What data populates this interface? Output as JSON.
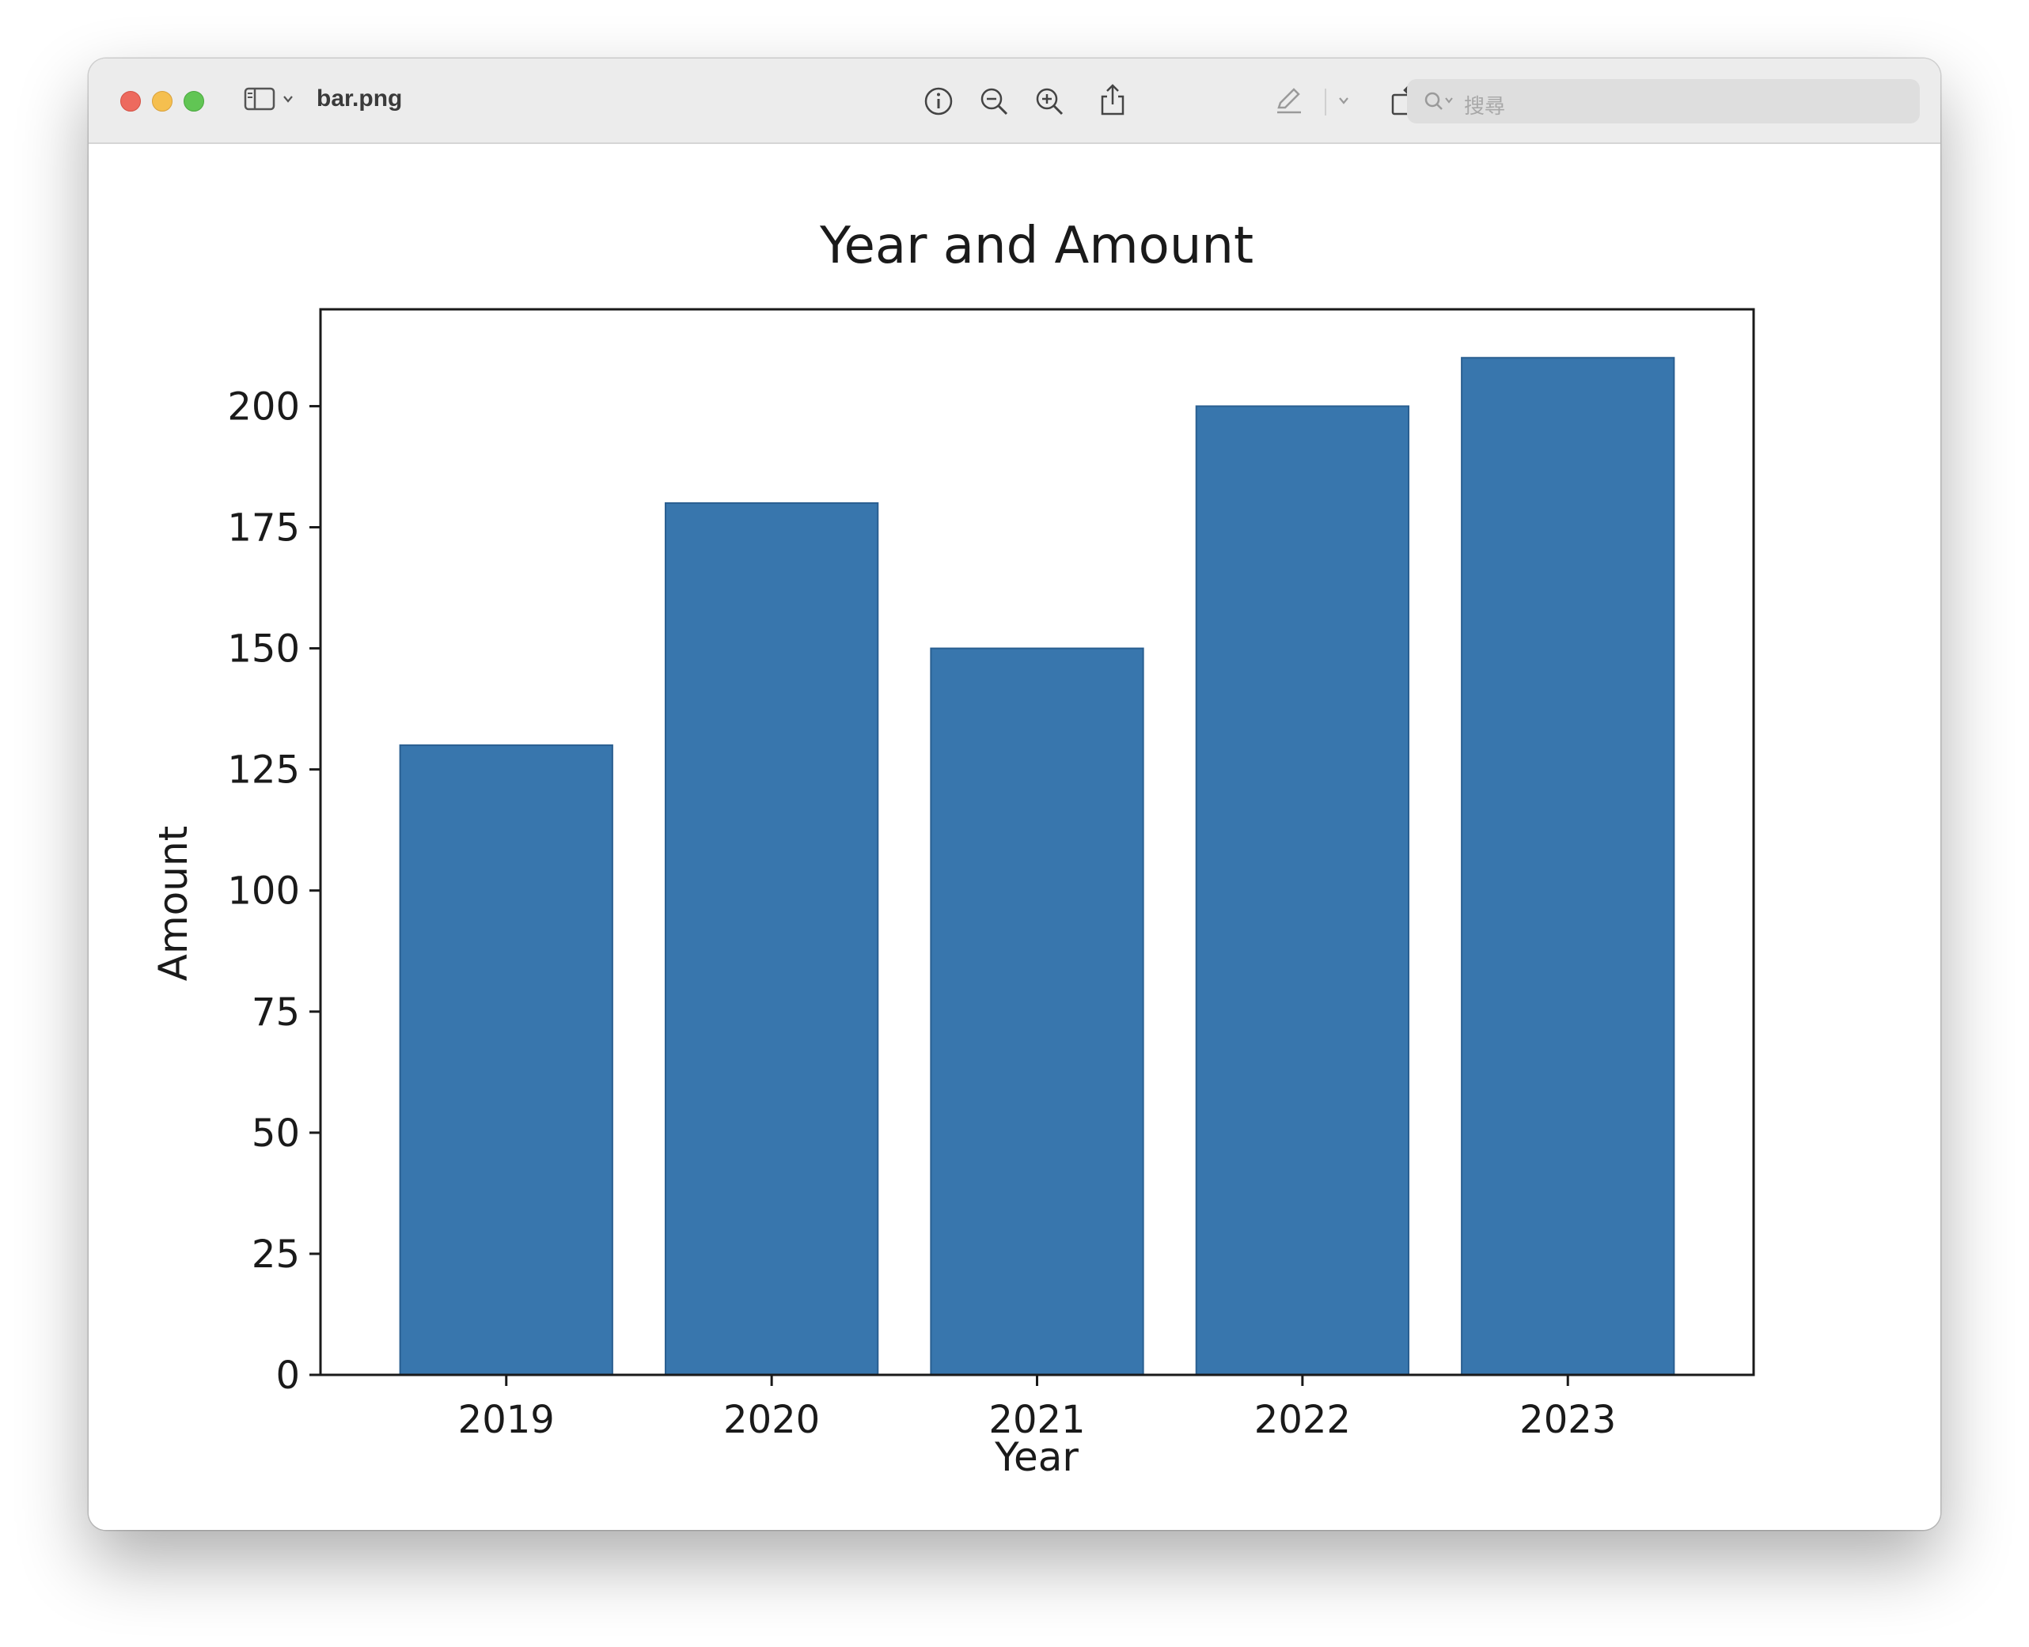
{
  "window": {
    "title": "bar.png",
    "search_placeholder": "搜尋"
  },
  "toolbar": {
    "icons": [
      "sidebar-icon",
      "chevron-down-icon",
      "info-icon",
      "zoom-out-icon",
      "zoom-in-icon",
      "share-icon",
      "markup-pen-icon",
      "chevron-down-icon",
      "rotate-icon",
      "annotate-icon",
      "search-icon"
    ]
  },
  "colors": {
    "bar_fill": "#3876ad",
    "bar_edge": "#2a5f91"
  },
  "chart_data": {
    "type": "bar",
    "title": "Year and Amount",
    "xlabel": "Year",
    "ylabel": "Amount",
    "categories": [
      "2019",
      "2020",
      "2021",
      "2022",
      "2023"
    ],
    "values": [
      130,
      180,
      150,
      200,
      210
    ],
    "ylim": [
      0,
      220
    ],
    "yticks": [
      0,
      25,
      50,
      75,
      100,
      125,
      150,
      175,
      200
    ],
    "grid": false,
    "legend": "none"
  }
}
